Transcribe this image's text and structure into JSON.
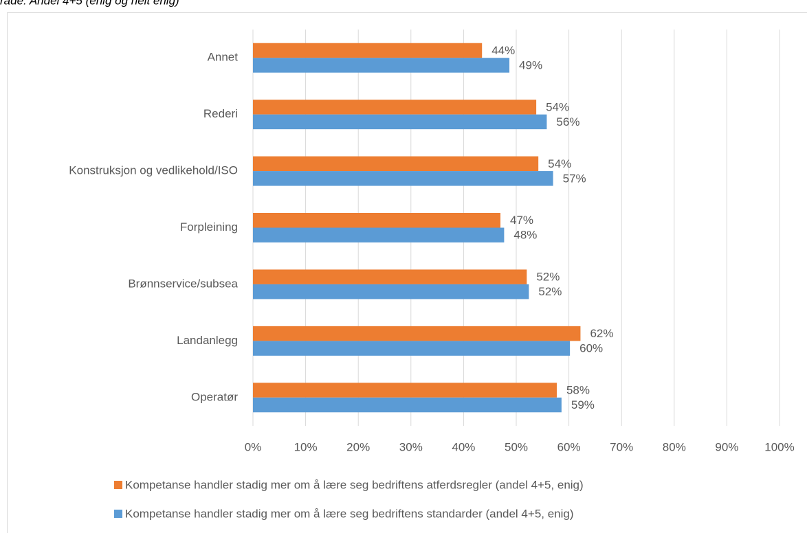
{
  "chart_data": {
    "type": "hbar",
    "title": "rade: Andel 4+5 (enig og helt enig)",
    "categories": [
      "Annet",
      "Rederi",
      "Konstruksjon og vedlikehold/ISO",
      "Forpleining",
      "Brønnservice/subsea",
      "Landanlegg",
      "Operatør"
    ],
    "series": [
      {
        "name": "Kompetanse handler stadig mer om å lære seg bedriftens atferdsregler (andel 4+5, enig)",
        "color": "#ed7d31",
        "values": [
          43.5,
          53.8,
          54.2,
          47.0,
          52.0,
          62.2,
          57.7
        ],
        "value_labels": [
          "44%",
          "54%",
          "54%",
          "47%",
          "52%",
          "62%",
          "58%"
        ]
      },
      {
        "name": "Kompetanse handler stadig mer om å lære seg bedriftens standarder (andel 4+5, enig)",
        "color": "#5b9bd5",
        "values": [
          48.7,
          55.8,
          57.0,
          47.7,
          52.4,
          60.2,
          58.6
        ],
        "value_labels": [
          "49%",
          "56%",
          "57%",
          "48%",
          "52%",
          "60%",
          "59%"
        ]
      }
    ],
    "xlim": [
      0,
      100
    ],
    "xticks": [
      {
        "value": 0,
        "label": "0%"
      },
      {
        "value": 10,
        "label": "10%"
      },
      {
        "value": 20,
        "label": "20%"
      },
      {
        "value": 30,
        "label": "30%"
      },
      {
        "value": 40,
        "label": "40%"
      },
      {
        "value": 50,
        "label": "50%"
      },
      {
        "value": 60,
        "label": "60%"
      },
      {
        "value": 70,
        "label": "70%"
      },
      {
        "value": 80,
        "label": "80%"
      },
      {
        "value": 90,
        "label": "90%"
      },
      {
        "value": 100,
        "label": "100%"
      }
    ],
    "grid": true
  }
}
